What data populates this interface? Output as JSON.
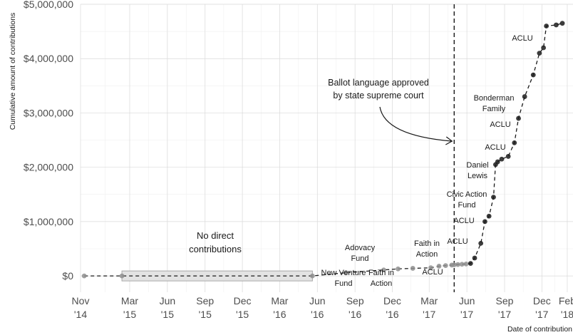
{
  "chart_data": {
    "type": "line",
    "title": "",
    "xlabel": "Date of contribution",
    "ylabel": "Cumulative amount of contributions",
    "ylim": [
      -300000,
      5000000
    ],
    "xlim": [
      "2014-11-01",
      "2018-02-15"
    ],
    "grid": true,
    "legend": "none",
    "y_ticks": [
      {
        "value": 0,
        "label": "$0"
      },
      {
        "value": 1000000,
        "label": "$1,000,000"
      },
      {
        "value": 2000000,
        "label": "$2,000,000"
      },
      {
        "value": 3000000,
        "label": "$3,000,000"
      },
      {
        "value": 4000000,
        "label": "$4,000,000"
      },
      {
        "value": 5000000,
        "label": "$5,000,000"
      }
    ],
    "x_ticks": [
      {
        "date": "2014-11-01",
        "month": "Nov",
        "year": "'14"
      },
      {
        "date": "2015-03-01",
        "month": "Mar",
        "year": "'15"
      },
      {
        "date": "2015-06-01",
        "month": "Jun",
        "year": "'15"
      },
      {
        "date": "2015-09-01",
        "month": "Sep",
        "year": "'15"
      },
      {
        "date": "2015-12-01",
        "month": "Dec",
        "year": "'15"
      },
      {
        "date": "2016-03-01",
        "month": "Mar",
        "year": "'16"
      },
      {
        "date": "2016-06-01",
        "month": "Jun",
        "year": "'16"
      },
      {
        "date": "2016-09-01",
        "month": "Sep",
        "year": "'16"
      },
      {
        "date": "2016-12-01",
        "month": "Dec",
        "year": "'16"
      },
      {
        "date": "2017-03-01",
        "month": "Mar",
        "year": "'17"
      },
      {
        "date": "2017-06-01",
        "month": "Jun",
        "year": "'17"
      },
      {
        "date": "2017-09-01",
        "month": "Sep",
        "year": "'17"
      },
      {
        "date": "2017-12-01",
        "month": "Dec",
        "year": "'17"
      },
      {
        "date": "2018-02-01",
        "month": "Feb",
        "year": "'18"
      }
    ],
    "points": [
      {
        "x": "2014-11-10",
        "y": 0
      },
      {
        "x": "2015-02-10",
        "y": 0
      },
      {
        "x": "2016-05-20",
        "y": 0
      },
      {
        "x": "2016-08-10",
        "y": 60000
      },
      {
        "x": "2016-11-10",
        "y": 110000
      },
      {
        "x": "2016-12-15",
        "y": 130000
      },
      {
        "x": "2017-01-20",
        "y": 140000
      },
      {
        "x": "2017-03-05",
        "y": 150000
      },
      {
        "x": "2017-03-25",
        "y": 180000
      },
      {
        "x": "2017-04-10",
        "y": 190000
      },
      {
        "x": "2017-04-25",
        "y": 200000
      },
      {
        "x": "2017-05-01",
        "y": 205000
      },
      {
        "x": "2017-05-10",
        "y": 210000
      },
      {
        "x": "2017-05-20",
        "y": 215000
      },
      {
        "x": "2017-05-30",
        "y": 220000
      },
      {
        "x": "2017-06-10",
        "y": 230000
      },
      {
        "x": "2017-06-20",
        "y": 330000
      },
      {
        "x": "2017-07-05",
        "y": 600000
      },
      {
        "x": "2017-07-15",
        "y": 1000000
      },
      {
        "x": "2017-07-25",
        "y": 1100000
      },
      {
        "x": "2017-08-05",
        "y": 1450000
      },
      {
        "x": "2017-08-10",
        "y": 2050000
      },
      {
        "x": "2017-08-15",
        "y": 2100000
      },
      {
        "x": "2017-08-25",
        "y": 2150000
      },
      {
        "x": "2017-09-10",
        "y": 2200000
      },
      {
        "x": "2017-09-25",
        "y": 2450000
      },
      {
        "x": "2017-10-05",
        "y": 2900000
      },
      {
        "x": "2017-10-20",
        "y": 3300000
      },
      {
        "x": "2017-11-10",
        "y": 3700000
      },
      {
        "x": "2017-11-25",
        "y": 4100000
      },
      {
        "x": "2017-12-05",
        "y": 4200000
      },
      {
        "x": "2017-12-12",
        "y": 4600000
      },
      {
        "x": "2018-01-05",
        "y": 4620000
      },
      {
        "x": "2018-01-20",
        "y": 4650000
      }
    ],
    "events": [
      {
        "date": "2017-05-01",
        "label": "Ballot language approved by state supreme court"
      }
    ],
    "annotations": [
      {
        "lines": [
          "No direct",
          "contributions"
        ]
      },
      {
        "lines": [
          "Adovacy",
          "Fund"
        ]
      },
      {
        "lines": [
          "New Venture",
          "Fund"
        ]
      },
      {
        "lines": [
          "Faith in",
          "Action"
        ]
      },
      {
        "lines": [
          "Faith in",
          "Action"
        ]
      },
      {
        "lines": [
          "ACLU"
        ]
      },
      {
        "lines": [
          "ACLU"
        ]
      },
      {
        "lines": [
          "ACLU"
        ]
      },
      {
        "lines": [
          "Civic Action",
          "Fund"
        ]
      },
      {
        "lines": [
          "Daniel",
          "Lewis"
        ]
      },
      {
        "lines": [
          "ACLU"
        ]
      },
      {
        "lines": [
          "ACLU"
        ]
      },
      {
        "lines": [
          "Bonderman",
          "Family"
        ]
      },
      {
        "lines": [
          "ACLU"
        ]
      }
    ],
    "no_contribution_period": {
      "start": "2015-02-10",
      "end": "2016-05-20"
    }
  }
}
